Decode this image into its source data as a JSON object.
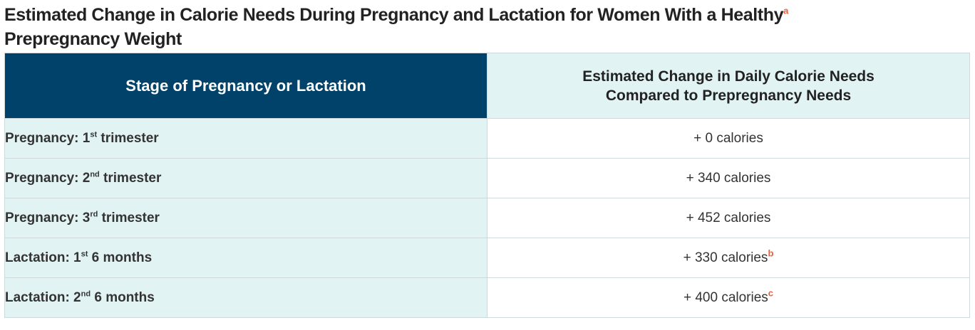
{
  "title": {
    "line1": "Estimated Change in Calorie Needs During Pregnancy and Lactation for Women With a Healthy",
    "footnote": "a",
    "line2": "Prepregnancy Weight"
  },
  "table": {
    "header": {
      "col1": "Stage of Pregnancy or Lactation",
      "col2_line1": "Estimated Change in Daily Calorie Needs",
      "col2_line2": "Compared to Prepregnancy Needs"
    },
    "rows": [
      {
        "stage_prefix": "Pregnancy: 1",
        "stage_sup": "st",
        "stage_suffix": " trimester",
        "value": "+ 0 calories",
        "footnote": ""
      },
      {
        "stage_prefix": "Pregnancy: 2",
        "stage_sup": "nd",
        "stage_suffix": " trimester",
        "value": "+ 340 calories",
        "footnote": ""
      },
      {
        "stage_prefix": "Pregnancy: 3",
        "stage_sup": "rd",
        "stage_suffix": " trimester",
        "value": "+ 452 calories",
        "footnote": ""
      },
      {
        "stage_prefix": "Lactation: 1",
        "stage_sup": "st",
        "stage_suffix": " 6 months",
        "value": "+ 330 calories",
        "footnote": "b"
      },
      {
        "stage_prefix": "Lactation: 2",
        "stage_sup": "nd",
        "stage_suffix": " 6 months",
        "value": "+ 400 calories",
        "footnote": "c"
      }
    ]
  },
  "colors": {
    "header_dark": "#00426a",
    "header_light": "#e2f3f4",
    "stage_bg": "#e2f3f4",
    "footnote": "#e8613c"
  }
}
